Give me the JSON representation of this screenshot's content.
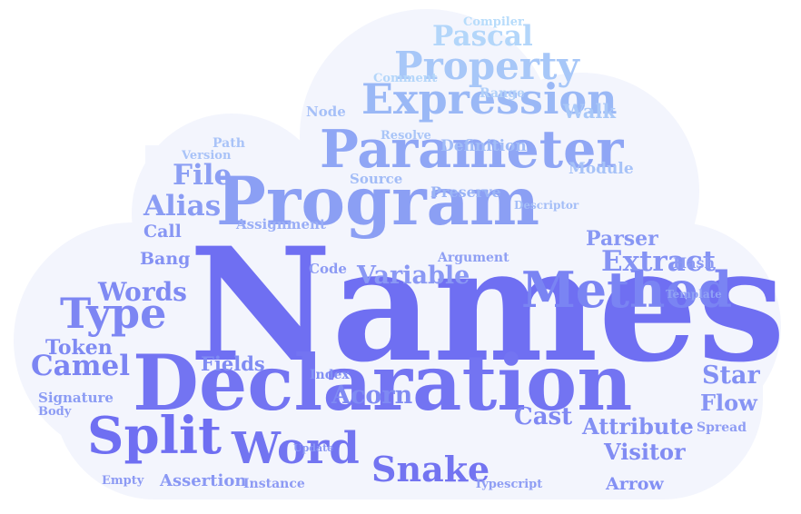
{
  "colors": {
    "cloud_fill": "#f3f5fd",
    "word_palette": [
      "#6f6ff2",
      "#7b86f4",
      "#8b9ff4",
      "#9ab8f6",
      "#a9cdf8",
      "#b6dcfb"
    ]
  },
  "words": [
    {
      "id": "names",
      "text": "Names"
    },
    {
      "id": "declaration",
      "text": "Declaration"
    },
    {
      "id": "program",
      "text": "Program"
    },
    {
      "id": "parameter",
      "text": "Parameter"
    },
    {
      "id": "split",
      "text": "Split"
    },
    {
      "id": "word",
      "text": "Word"
    },
    {
      "id": "method",
      "text": "Method"
    },
    {
      "id": "expression",
      "text": "Expression"
    },
    {
      "id": "property",
      "text": "Property"
    },
    {
      "id": "type",
      "text": "Type"
    },
    {
      "id": "variable",
      "text": "Variable"
    },
    {
      "id": "snake",
      "text": "Snake"
    },
    {
      "id": "extract",
      "text": "Extract"
    },
    {
      "id": "file",
      "text": "File"
    },
    {
      "id": "alias",
      "text": "Alias"
    },
    {
      "id": "pascal",
      "text": "Pascal"
    },
    {
      "id": "camel",
      "text": "Camel"
    },
    {
      "id": "words",
      "text": "Words"
    },
    {
      "id": "acorn",
      "text": "Acorn"
    },
    {
      "id": "cast",
      "text": "Cast"
    },
    {
      "id": "attribute",
      "text": "Attribute"
    },
    {
      "id": "visitor",
      "text": "Visitor"
    },
    {
      "id": "star",
      "text": "Star"
    },
    {
      "id": "flow",
      "text": "Flow"
    },
    {
      "id": "token",
      "text": "Token"
    },
    {
      "id": "fields",
      "text": "Fields"
    },
    {
      "id": "parser",
      "text": "Parser"
    },
    {
      "id": "arrow",
      "text": "Arrow"
    },
    {
      "id": "walk",
      "text": "Walk"
    },
    {
      "id": "definition",
      "text": "Definition"
    },
    {
      "id": "call",
      "text": "Call"
    },
    {
      "id": "bang",
      "text": "Bang"
    },
    {
      "id": "assertion",
      "text": "Assertion"
    },
    {
      "id": "module",
      "text": "Module"
    },
    {
      "id": "assignment",
      "text": "Assignment"
    },
    {
      "id": "code",
      "text": "Code"
    },
    {
      "id": "argument",
      "text": "Argument"
    },
    {
      "id": "preserve",
      "text": "Preserve"
    },
    {
      "id": "source",
      "text": "Source"
    },
    {
      "id": "signature",
      "text": "Signature"
    },
    {
      "id": "hash",
      "text": "Hash"
    },
    {
      "id": "spread",
      "text": "Spread"
    },
    {
      "id": "index",
      "text": "Index"
    },
    {
      "id": "node",
      "text": "Node"
    },
    {
      "id": "instance",
      "text": "Instance"
    },
    {
      "id": "path",
      "text": "Path"
    },
    {
      "id": "version",
      "text": "Version"
    },
    {
      "id": "range",
      "text": "Range"
    },
    {
      "id": "comment",
      "text": "Comment"
    },
    {
      "id": "resolve",
      "text": "Resolve"
    },
    {
      "id": "body",
      "text": "Body"
    },
    {
      "id": "empty",
      "text": "Empty"
    },
    {
      "id": "typescript",
      "text": "Typescript"
    },
    {
      "id": "compiler",
      "text": "Compiler"
    },
    {
      "id": "descriptor",
      "text": "Descriptor"
    },
    {
      "id": "template",
      "text": "Template"
    },
    {
      "id": "update",
      "text": "Update"
    }
  ]
}
